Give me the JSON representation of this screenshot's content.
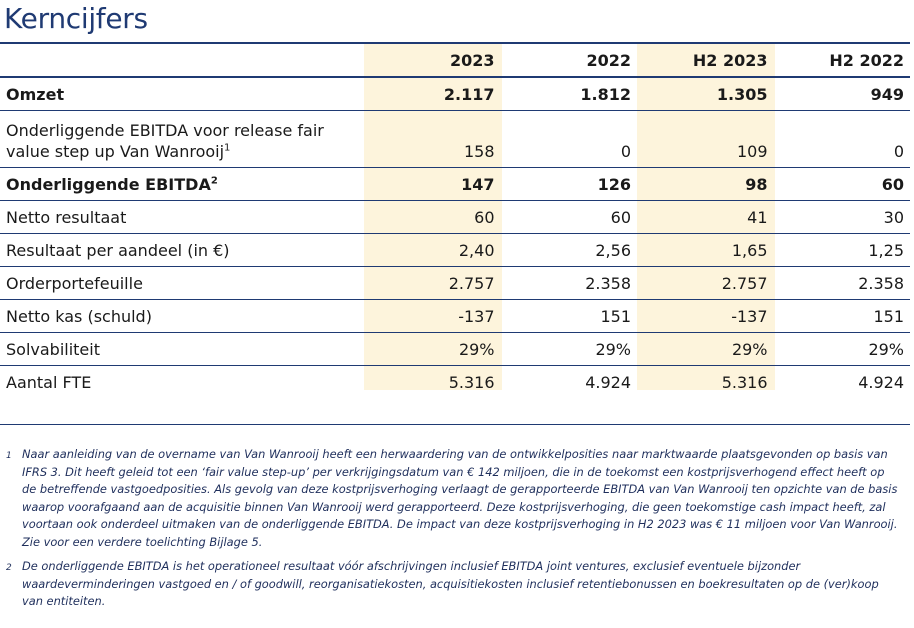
{
  "title": "Kerncijfers",
  "columns": [
    "2023",
    "2022",
    "H2 2023",
    "H2 2022"
  ],
  "rows": [
    {
      "label": "Omzet",
      "sup": "",
      "values": [
        "2.117",
        "1.812",
        "1.305",
        "949"
      ]
    },
    {
      "label": "Onderliggende EBITDA voor release fair value step up Van Wanrooij",
      "sup": "1",
      "values": [
        "158",
        "0",
        "109",
        "0"
      ]
    },
    {
      "label": "Onderliggende EBITDA",
      "sup": "2",
      "values": [
        "147",
        "126",
        "98",
        "60"
      ]
    },
    {
      "label": "Netto resultaat",
      "sup": "",
      "values": [
        "60",
        "60",
        "41",
        "30"
      ]
    },
    {
      "label": "Resultaat per aandeel (in €)",
      "sup": "",
      "values": [
        "2,40",
        "2,56",
        "1,65",
        "1,25"
      ]
    },
    {
      "label": "Orderportefeuille",
      "sup": "",
      "values": [
        "2.757",
        "2.358",
        "2.757",
        "2.358"
      ]
    },
    {
      "label": "Netto kas (schuld)",
      "sup": "",
      "values": [
        "-137",
        "151",
        "-137",
        "151"
      ]
    },
    {
      "label": "Solvabiliteit",
      "sup": "",
      "values": [
        "29%",
        "29%",
        "29%",
        "29%"
      ]
    },
    {
      "label": "Aantal FTE",
      "sup": "",
      "values": [
        "5.316",
        "4.924",
        "5.316",
        "4.924"
      ]
    }
  ],
  "footnotes": [
    {
      "num": "1",
      "text": "Naar aanleiding van de overname van Van Wanrooij heeft een herwaardering van de ontwikkelposities naar marktwaarde plaatsgevonden op basis van IFRS 3. Dit heeft geleid tot een ‘fair value step-up’ per verkrijgingsdatum van € 142 miljoen, die in de toekomst een kostprijsverhogend effect heeft op de betreffende vastgoedposities. Als gevolg van deze kostprijsverhoging verlaagt de gerapporteerde EBITDA van Van Wanrooij ten opzichte van de basis waarop voorafgaand aan de acquisitie binnen Van Wanrooij werd gerapporteerd. Deze kostprijsverhoging, die geen toekomstige cash impact heeft, zal voortaan ook onderdeel uitmaken van de onderliggende EBITDA. De impact van deze kostprijsverhoging in H2 2023 was € 11 miljoen voor Van Wanrooij. Zie voor een verdere toelichting Bijlage 5."
    },
    {
      "num": "2",
      "text": "De onderliggende EBITDA is het operationeel resultaat vóór afschrijvingen inclusief EBITDA joint ventures, exclusief eventuele bijzonder waardeverminderingen vastgoed en / of goodwill, reorganisatiekosten, acquisitiekosten inclusief retentiebonussen en boekresultaten op de (ver)koop van entiteiten."
    }
  ]
}
